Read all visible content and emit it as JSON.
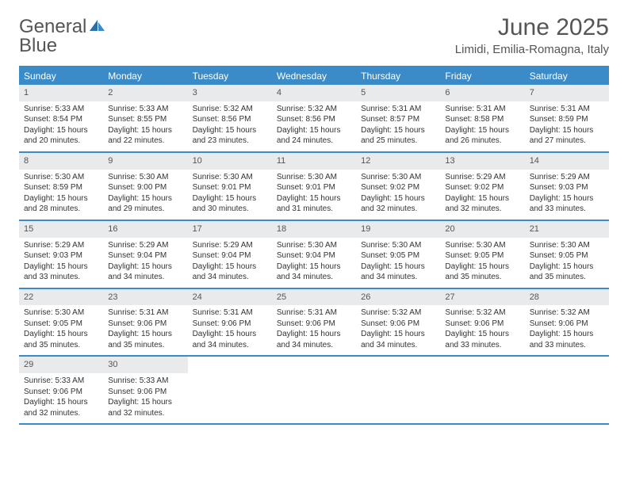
{
  "logo": {
    "line1": "General",
    "line2": "Blue"
  },
  "title": "June 2025",
  "location": "Limidi, Emilia-Romagna, Italy",
  "colors": {
    "accent": "#3b8bc8",
    "daynum_bg": "#e9eaec",
    "text": "#555555",
    "body_text": "#333333",
    "background": "#ffffff"
  },
  "typography": {
    "title_fontsize": 30,
    "location_fontsize": 15,
    "weekday_fontsize": 12,
    "body_fontsize": 10
  },
  "weekdays": [
    "Sunday",
    "Monday",
    "Tuesday",
    "Wednesday",
    "Thursday",
    "Friday",
    "Saturday"
  ],
  "labels": {
    "sunrise": "Sunrise:",
    "sunset": "Sunset:",
    "daylight": "Daylight:"
  },
  "days": [
    {
      "num": 1,
      "sunrise": "5:33 AM",
      "sunset": "8:54 PM",
      "daylight": "15 hours and 20 minutes."
    },
    {
      "num": 2,
      "sunrise": "5:33 AM",
      "sunset": "8:55 PM",
      "daylight": "15 hours and 22 minutes."
    },
    {
      "num": 3,
      "sunrise": "5:32 AM",
      "sunset": "8:56 PM",
      "daylight": "15 hours and 23 minutes."
    },
    {
      "num": 4,
      "sunrise": "5:32 AM",
      "sunset": "8:56 PM",
      "daylight": "15 hours and 24 minutes."
    },
    {
      "num": 5,
      "sunrise": "5:31 AM",
      "sunset": "8:57 PM",
      "daylight": "15 hours and 25 minutes."
    },
    {
      "num": 6,
      "sunrise": "5:31 AM",
      "sunset": "8:58 PM",
      "daylight": "15 hours and 26 minutes."
    },
    {
      "num": 7,
      "sunrise": "5:31 AM",
      "sunset": "8:59 PM",
      "daylight": "15 hours and 27 minutes."
    },
    {
      "num": 8,
      "sunrise": "5:30 AM",
      "sunset": "8:59 PM",
      "daylight": "15 hours and 28 minutes."
    },
    {
      "num": 9,
      "sunrise": "5:30 AM",
      "sunset": "9:00 PM",
      "daylight": "15 hours and 29 minutes."
    },
    {
      "num": 10,
      "sunrise": "5:30 AM",
      "sunset": "9:01 PM",
      "daylight": "15 hours and 30 minutes."
    },
    {
      "num": 11,
      "sunrise": "5:30 AM",
      "sunset": "9:01 PM",
      "daylight": "15 hours and 31 minutes."
    },
    {
      "num": 12,
      "sunrise": "5:30 AM",
      "sunset": "9:02 PM",
      "daylight": "15 hours and 32 minutes."
    },
    {
      "num": 13,
      "sunrise": "5:29 AM",
      "sunset": "9:02 PM",
      "daylight": "15 hours and 32 minutes."
    },
    {
      "num": 14,
      "sunrise": "5:29 AM",
      "sunset": "9:03 PM",
      "daylight": "15 hours and 33 minutes."
    },
    {
      "num": 15,
      "sunrise": "5:29 AM",
      "sunset": "9:03 PM",
      "daylight": "15 hours and 33 minutes."
    },
    {
      "num": 16,
      "sunrise": "5:29 AM",
      "sunset": "9:04 PM",
      "daylight": "15 hours and 34 minutes."
    },
    {
      "num": 17,
      "sunrise": "5:29 AM",
      "sunset": "9:04 PM",
      "daylight": "15 hours and 34 minutes."
    },
    {
      "num": 18,
      "sunrise": "5:30 AM",
      "sunset": "9:04 PM",
      "daylight": "15 hours and 34 minutes."
    },
    {
      "num": 19,
      "sunrise": "5:30 AM",
      "sunset": "9:05 PM",
      "daylight": "15 hours and 34 minutes."
    },
    {
      "num": 20,
      "sunrise": "5:30 AM",
      "sunset": "9:05 PM",
      "daylight": "15 hours and 35 minutes."
    },
    {
      "num": 21,
      "sunrise": "5:30 AM",
      "sunset": "9:05 PM",
      "daylight": "15 hours and 35 minutes."
    },
    {
      "num": 22,
      "sunrise": "5:30 AM",
      "sunset": "9:05 PM",
      "daylight": "15 hours and 35 minutes."
    },
    {
      "num": 23,
      "sunrise": "5:31 AM",
      "sunset": "9:06 PM",
      "daylight": "15 hours and 35 minutes."
    },
    {
      "num": 24,
      "sunrise": "5:31 AM",
      "sunset": "9:06 PM",
      "daylight": "15 hours and 34 minutes."
    },
    {
      "num": 25,
      "sunrise": "5:31 AM",
      "sunset": "9:06 PM",
      "daylight": "15 hours and 34 minutes."
    },
    {
      "num": 26,
      "sunrise": "5:32 AM",
      "sunset": "9:06 PM",
      "daylight": "15 hours and 34 minutes."
    },
    {
      "num": 27,
      "sunrise": "5:32 AM",
      "sunset": "9:06 PM",
      "daylight": "15 hours and 33 minutes."
    },
    {
      "num": 28,
      "sunrise": "5:32 AM",
      "sunset": "9:06 PM",
      "daylight": "15 hours and 33 minutes."
    },
    {
      "num": 29,
      "sunrise": "5:33 AM",
      "sunset": "9:06 PM",
      "daylight": "15 hours and 32 minutes."
    },
    {
      "num": 30,
      "sunrise": "5:33 AM",
      "sunset": "9:06 PM",
      "daylight": "15 hours and 32 minutes."
    }
  ],
  "layout": {
    "columns": 7,
    "start_weekday_index": 0,
    "weeks": 5,
    "trailing_empty": 5
  }
}
